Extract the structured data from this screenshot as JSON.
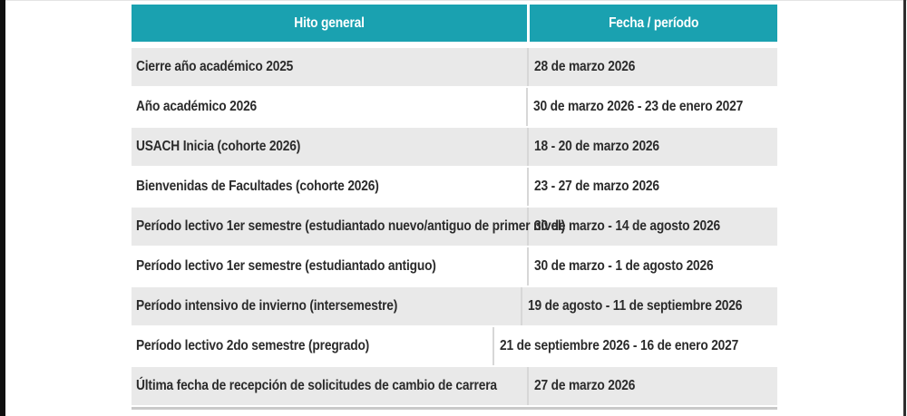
{
  "table": {
    "header": {
      "col1": "Hito general",
      "col2": "Fecha / período"
    },
    "rows": [
      {
        "hito": "Cierre año académico 2025",
        "fecha": "28 de marzo 2026"
      },
      {
        "hito": "Año académico 2026",
        "fecha": "30 de marzo 2026 - 23 de enero 2027"
      },
      {
        "hito": "USACH Inicia (cohorte 2026)",
        "fecha": "18 - 20 de marzo 2026"
      },
      {
        "hito": "Bienvenidas de Facultades (cohorte 2026)",
        "fecha": "23 - 27 de marzo 2026"
      },
      {
        "hito": "Período lectivo 1er semestre (estudiantado nuevo/antiguo de primer nivel)",
        "fecha": "30 de marzo - 14 de agosto 2026"
      },
      {
        "hito": "Período lectivo 1er semestre (estudiantado antiguo)",
        "fecha": "30 de marzo - 1 de agosto 2026"
      },
      {
        "hito": "Período intensivo de invierno (intersemestre)",
        "fecha": "19 de agosto - 11 de septiembre 2026"
      },
      {
        "hito": "Período lectivo 2do semestre (pregrado)",
        "fecha": "21 de septiembre 2026 - 16 de enero 2027"
      },
      {
        "hito": "Última fecha de recepción de solicitudes de cambio de carrera",
        "fecha": "27 de marzo 2026"
      }
    ],
    "colors": {
      "header_bg": "#1aa1b0",
      "header_text": "#ffffff",
      "row_alt_bg": "#e9e9e9",
      "row_bg": "#ffffff",
      "column_divider": "#d7d7d7",
      "bottom_border": "#c9c9c9",
      "body_text": "#2b2b2b"
    }
  }
}
